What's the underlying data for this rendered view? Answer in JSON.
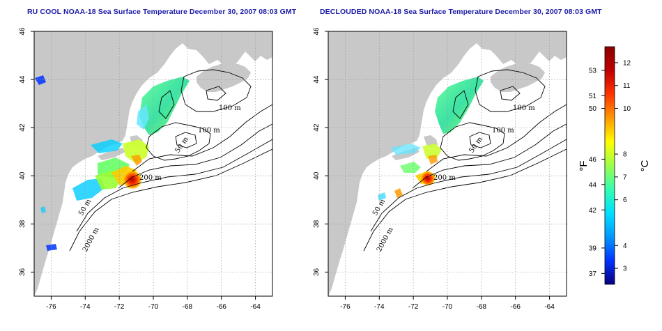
{
  "panels": [
    {
      "title": "RU COOL NOAA-18 Sea Surface Temperature December 30, 2007 08:03 GMT",
      "variant": "cool"
    },
    {
      "title": "DECLOUDED NOAA-18 Sea Surface Temperature December 30, 2007 08:03 GMT",
      "variant": "declouded"
    }
  ],
  "map_axes": {
    "x_ticks": [
      "-76",
      "-74",
      "-72",
      "-70",
      "-68",
      "-66",
      "-64"
    ],
    "y_ticks": [
      "36",
      "38",
      "40",
      "42",
      "44",
      "46"
    ],
    "lon_range": [
      -77.0,
      -63.0
    ],
    "lat_range": [
      35.0,
      46.0
    ],
    "grid": "dotted"
  },
  "contours": {
    "labels": [
      "100 m",
      "100 m",
      "50 m",
      "200 m",
      "50 m",
      "2000 m"
    ]
  },
  "colorbar": {
    "fahrenheit_ticks": [
      "53",
      "51",
      "50",
      "46",
      "44",
      "42",
      "39",
      "37"
    ],
    "celsius_ticks": [
      "12",
      "11",
      "10",
      "8",
      "7",
      "6",
      "4",
      "3"
    ],
    "fahrenheit_unit": "°F",
    "celsius_unit": "°C",
    "celsius_range": [
      2.3,
      12.7
    ],
    "colors": [
      "#0a0080",
      "#0033ff",
      "#0099ff",
      "#00e0ff",
      "#33ffb0",
      "#9cff4a",
      "#ffff00",
      "#ff9900",
      "#ff3300",
      "#c00000",
      "#8b0000"
    ]
  },
  "colors": {
    "land": "#c8c8c8",
    "title": "#1a1aa8",
    "sea": "#ffffff"
  }
}
